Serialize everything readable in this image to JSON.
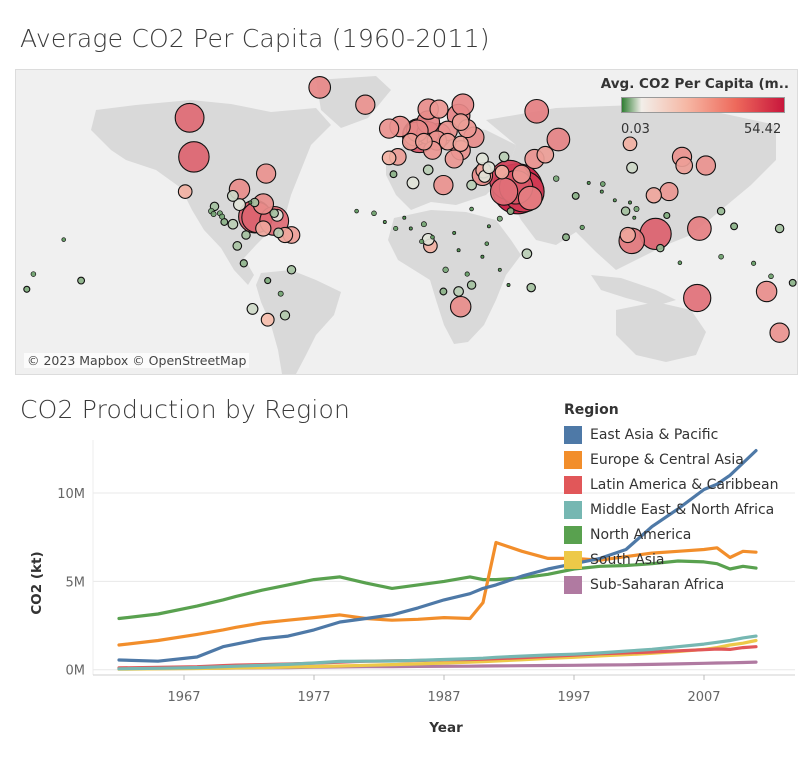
{
  "map": {
    "title": "Average CO2 Per Capita (1960-2011)",
    "attribution": "© 2023 Mapbox © OpenStreetMap",
    "legend": {
      "title": "Avg. CO2 Per Capita (m..",
      "min_label": "0.03",
      "max_label": "54.42",
      "color_low": "#2f7d32",
      "color_mid": "#f2eee9",
      "color_high": "#c8163c"
    }
  },
  "chart_data": {
    "type": "line",
    "title": "CO2 Production by Region",
    "xlabel": "Year",
    "ylabel": "CO2 (kt)",
    "xlim": [
      1960,
      2014
    ],
    "ylim": [
      -300000,
      13000000
    ],
    "x_ticks": [
      1967,
      1977,
      1987,
      1997,
      2007
    ],
    "y_ticks": [
      {
        "value": 0,
        "label": "0M"
      },
      {
        "value": 5000000,
        "label": "5M"
      },
      {
        "value": 10000000,
        "label": "10M"
      }
    ],
    "legend_title": "Region",
    "legend_position": "top-right",
    "x": [
      1962,
      1965,
      1968,
      1970,
      1971,
      1973,
      1975,
      1977,
      1979,
      1981,
      1983,
      1985,
      1987,
      1989,
      1990,
      1991,
      1993,
      1995,
      1997,
      1999,
      2001,
      2003,
      2005,
      2007,
      2008,
      2009,
      2010,
      2011
    ],
    "series": [
      {
        "name": "East Asia & Pacific",
        "color": "#4e79a7",
        "values": [
          550000,
          480000,
          720000,
          1300000,
          1450000,
          1750000,
          1900000,
          2250000,
          2700000,
          2900000,
          3100000,
          3500000,
          3950000,
          4300000,
          4600000,
          4800000,
          5300000,
          5700000,
          6000000,
          6300000,
          6800000,
          8100000,
          9100000,
          10200000,
          10500000,
          11000000,
          11700000,
          12400000
        ]
      },
      {
        "name": "Europe & Central Asia",
        "color": "#f28e2b",
        "values": [
          1400000,
          1650000,
          2000000,
          2250000,
          2400000,
          2650000,
          2800000,
          2950000,
          3100000,
          2900000,
          2800000,
          2850000,
          2950000,
          2900000,
          3800000,
          7200000,
          6700000,
          6300000,
          6300000,
          6200000,
          6400000,
          6600000,
          6700000,
          6800000,
          6900000,
          6350000,
          6700000,
          6650000
        ]
      },
      {
        "name": "Latin America & Caribbean",
        "color": "#e15759",
        "values": [
          100000,
          130000,
          170000,
          230000,
          260000,
          290000,
          320000,
          370000,
          430000,
          480000,
          500000,
          520000,
          560000,
          580000,
          600000,
          620000,
          680000,
          750000,
          820000,
          900000,
          950000,
          1000000,
          1070000,
          1130000,
          1170000,
          1150000,
          1250000,
          1300000
        ]
      },
      {
        "name": "Middle East & North Africa",
        "color": "#76b7b2",
        "values": [
          50000,
          80000,
          120000,
          170000,
          200000,
          250000,
          300000,
          380000,
          470000,
          480000,
          490000,
          530000,
          580000,
          620000,
          650000,
          700000,
          770000,
          830000,
          880000,
          950000,
          1050000,
          1150000,
          1300000,
          1450000,
          1550000,
          1650000,
          1800000,
          1900000
        ]
      },
      {
        "name": "North America",
        "color": "#59a14f",
        "values": [
          2900000,
          3150000,
          3600000,
          3950000,
          4150000,
          4500000,
          4800000,
          5100000,
          5250000,
          4900000,
          4600000,
          4800000,
          5000000,
          5250000,
          5100000,
          5100000,
          5200000,
          5400000,
          5700000,
          5850000,
          5900000,
          6000000,
          6150000,
          6100000,
          6000000,
          5700000,
          5850000,
          5750000
        ]
      },
      {
        "name": "South Asia",
        "color": "#edc948",
        "values": [
          30000,
          50000,
          70000,
          90000,
          100000,
          120000,
          150000,
          180000,
          210000,
          250000,
          290000,
          330000,
          380000,
          430000,
          460000,
          490000,
          560000,
          640000,
          700000,
          780000,
          850000,
          930000,
          1030000,
          1150000,
          1250000,
          1400000,
          1500000,
          1650000
        ]
      },
      {
        "name": "Sub-Saharan Africa",
        "color": "#b07aa1",
        "values": [
          50000,
          60000,
          75000,
          90000,
          95000,
          110000,
          120000,
          140000,
          160000,
          170000,
          175000,
          185000,
          195000,
          200000,
          210000,
          215000,
          225000,
          240000,
          250000,
          265000,
          280000,
          300000,
          330000,
          360000,
          380000,
          390000,
          410000,
          430000
        ]
      }
    ]
  },
  "map_points": [
    {
      "lon": -100,
      "lat": 58,
      "v": 18
    },
    {
      "lon": -98,
      "lat": 40,
      "v": 20
    },
    {
      "lon": -102,
      "lat": 24,
      "v": 4
    },
    {
      "lon": -40,
      "lat": 72,
      "v": 10
    },
    {
      "lon": -19,
      "lat": 64,
      "v": 8
    },
    {
      "lon": -3,
      "lat": 54,
      "v": 9
    },
    {
      "lon": -8,
      "lat": 53,
      "v": 8
    },
    {
      "lon": 2,
      "lat": 47,
      "v": 6
    },
    {
      "lon": 10,
      "lat": 51,
      "v": 11
    },
    {
      "lon": 5,
      "lat": 52,
      "v": 10
    },
    {
      "lon": 4,
      "lat": 50.5,
      "v": 12
    },
    {
      "lon": 6,
      "lat": 49.8,
      "v": 25
    },
    {
      "lon": 15,
      "lat": 62,
      "v": 7
    },
    {
      "lon": 10,
      "lat": 62,
      "v": 9
    },
    {
      "lon": 26,
      "lat": 64,
      "v": 10
    },
    {
      "lon": 10,
      "lat": 56,
      "v": 11
    },
    {
      "lon": 19,
      "lat": 52,
      "v": 8
    },
    {
      "lon": 15,
      "lat": 50,
      "v": 12
    },
    {
      "lon": 14,
      "lat": 47.5,
      "v": 8
    },
    {
      "lon": 12,
      "lat": 43,
      "v": 7
    },
    {
      "lon": -4,
      "lat": 40,
      "v": 6
    },
    {
      "lon": -8,
      "lat": 39.5,
      "v": 4
    },
    {
      "lon": 22,
      "lat": 39,
      "v": 7
    },
    {
      "lon": 25,
      "lat": 43,
      "v": 8
    },
    {
      "lon": 25,
      "lat": 46,
      "v": 5
    },
    {
      "lon": 19,
      "lat": 47,
      "v": 6
    },
    {
      "lon": 8,
      "lat": 47,
      "v": 6
    },
    {
      "lon": 31,
      "lat": 49,
      "v": 9
    },
    {
      "lon": 28,
      "lat": 53,
      "v": 7
    },
    {
      "lon": 25,
      "lat": 56,
      "v": 6
    },
    {
      "lon": 24,
      "lat": 59,
      "v": 11
    },
    {
      "lon": 60,
      "lat": 61,
      "v": 12
    },
    {
      "lon": 70,
      "lat": 48,
      "v": 11
    },
    {
      "lon": 59,
      "lat": 39,
      "v": 8
    },
    {
      "lon": 64,
      "lat": 41,
      "v": 6
    },
    {
      "lon": 35,
      "lat": 39,
      "v": 3
    },
    {
      "lon": 45,
      "lat": 40,
      "v": 2
    },
    {
      "lon": 44,
      "lat": 33,
      "v": 4
    },
    {
      "lon": 53,
      "lat": 32,
      "v": 7
    },
    {
      "lon": 45,
      "lat": 24,
      "v": 16
    },
    {
      "lon": 51.2,
      "lat": 25.3,
      "v": 54
    },
    {
      "lon": 47.5,
      "lat": 29.3,
      "v": 34
    },
    {
      "lon": 54,
      "lat": 24,
      "v": 36
    },
    {
      "lon": 50.5,
      "lat": 26,
      "v": 24
    },
    {
      "lon": 57,
      "lat": 21,
      "v": 12
    },
    {
      "lon": 48,
      "lat": 15,
      "v": 1
    },
    {
      "lon": 36,
      "lat": 31,
      "v": 3
    },
    {
      "lon": 35.5,
      "lat": 33.8,
      "v": 5
    },
    {
      "lon": 38,
      "lat": 35,
      "v": 3
    },
    {
      "lon": 35,
      "lat": 31.5,
      "v": 9
    },
    {
      "lon": 3,
      "lat": 28,
      "v": 3
    },
    {
      "lon": 17,
      "lat": 27,
      "v": 8
    },
    {
      "lon": -6,
      "lat": 32,
      "v": 1
    },
    {
      "lon": 10,
      "lat": 34,
      "v": 2
    },
    {
      "lon": 30,
      "lat": 27,
      "v": 2
    },
    {
      "lon": 30,
      "lat": 16,
      "v": 0.3
    },
    {
      "lon": -15,
      "lat": 14,
      "v": 0.5
    },
    {
      "lon": -10,
      "lat": 10,
      "v": 0.2
    },
    {
      "lon": -1,
      "lat": 12,
      "v": 0.1
    },
    {
      "lon": 8,
      "lat": 9,
      "v": 0.6
    },
    {
      "lon": 12,
      "lat": 3,
      "v": 0.3
    },
    {
      "lon": 22,
      "lat": 5,
      "v": 0.1
    },
    {
      "lon": 24,
      "lat": -3,
      "v": 0.1
    },
    {
      "lon": 38,
      "lat": 8,
      "v": 0.1
    },
    {
      "lon": 37,
      "lat": 0,
      "v": 0.3
    },
    {
      "lon": 35,
      "lat": -6,
      "v": 0.1
    },
    {
      "lon": 28,
      "lat": -14,
      "v": 0.4
    },
    {
      "lon": 18,
      "lat": -12,
      "v": 0.7
    },
    {
      "lon": 17,
      "lat": -22,
      "v": 1
    },
    {
      "lon": 24,
      "lat": -22,
      "v": 2
    },
    {
      "lon": 30,
      "lat": -19,
      "v": 1.5
    },
    {
      "lon": 25,
      "lat": -29,
      "v": 9
    },
    {
      "lon": 47,
      "lat": -19,
      "v": 0.1
    },
    {
      "lon": 55.5,
      "lat": -4.6,
      "v": 2
    },
    {
      "lon": 57.5,
      "lat": -20.2,
      "v": 1.5
    },
    {
      "lon": 11,
      "lat": -1,
      "v": 4
    },
    {
      "lon": 10,
      "lat": 2,
      "v": 3
    },
    {
      "lon": -23,
      "lat": 15,
      "v": 0.3
    },
    {
      "lon": 7,
      "lat": 1,
      "v": 0.4
    },
    {
      "lon": 2,
      "lat": 7,
      "v": 0.2
    },
    {
      "lon": -5,
      "lat": 7,
      "v": 0.4
    },
    {
      "lon": 43,
      "lat": -12,
      "v": 0.2
    },
    {
      "lon": 43,
      "lat": 11.5,
      "v": 0.6
    },
    {
      "lon": 69,
      "lat": 30,
      "v": 0.7
    },
    {
      "lon": 78,
      "lat": 22,
      "v": 1
    },
    {
      "lon": 84,
      "lat": 28,
      "v": 0.1
    },
    {
      "lon": 90,
      "lat": 24,
      "v": 0.2
    },
    {
      "lon": 90.5,
      "lat": 27.5,
      "v": 0.5
    },
    {
      "lon": 81,
      "lat": 7.5,
      "v": 0.4
    },
    {
      "lon": 73.5,
      "lat": 3,
      "v": 1
    },
    {
      "lon": 96,
      "lat": 20,
      "v": 0.2
    },
    {
      "lon": 101,
      "lat": 15,
      "v": 1.5
    },
    {
      "lon": 105,
      "lat": 12,
      "v": 0.2
    },
    {
      "lon": 103,
      "lat": 19,
      "v": 0.1
    },
    {
      "lon": 106,
      "lat": 16,
      "v": 0.6
    },
    {
      "lon": 102,
      "lat": 4,
      "v": 5
    },
    {
      "lon": 103.8,
      "lat": 1.3,
      "v": 14
    },
    {
      "lon": 114.8,
      "lat": 4.5,
      "v": 21
    },
    {
      "lon": 120,
      "lat": 13,
      "v": 0.8
    },
    {
      "lon": 117,
      "lat": -2,
      "v": 1.2
    },
    {
      "lon": 126,
      "lat": -8.8,
      "v": 0.3
    },
    {
      "lon": 104,
      "lat": 35,
      "v": 2.5
    },
    {
      "lon": 103,
      "lat": 46,
      "v": 4
    },
    {
      "lon": 128,
      "lat": 36,
      "v": 6
    },
    {
      "lon": 127,
      "lat": 40,
      "v": 8
    },
    {
      "lon": 138,
      "lat": 36,
      "v": 8
    },
    {
      "lon": 114,
      "lat": 22.3,
      "v": 5
    },
    {
      "lon": 121,
      "lat": 24,
      "v": 7
    },
    {
      "lon": 134,
      "lat": -25,
      "v": 16
    },
    {
      "lon": 172,
      "lat": -41,
      "v": 8
    },
    {
      "lon": 145,
      "lat": -6,
      "v": 0.5
    },
    {
      "lon": 160,
      "lat": -9,
      "v": 0.4
    },
    {
      "lon": 166,
      "lat": -22,
      "v": 9
    },
    {
      "lon": 178,
      "lat": -18,
      "v": 1
    },
    {
      "lon": 172,
      "lat": 7,
      "v": 1.5
    },
    {
      "lon": 168,
      "lat": -15,
      "v": 0.5
    },
    {
      "lon": 151,
      "lat": 8,
      "v": 1
    },
    {
      "lon": 145,
      "lat": 15,
      "v": 1.2
    },
    {
      "lon": 135,
      "lat": 7,
      "v": 12
    },
    {
      "lon": -150,
      "lat": -17,
      "v": 1
    },
    {
      "lon": -172,
      "lat": -14,
      "v": 0.5
    },
    {
      "lon": -175,
      "lat": -21,
      "v": 0.8
    },
    {
      "lon": -158,
      "lat": 1.9,
      "v": 0.3
    },
    {
      "lon": -80,
      "lat": 22,
      "v": 2.5
    },
    {
      "lon": -72,
      "lat": 19,
      "v": 0.2
    },
    {
      "lon": -70,
      "lat": 19,
      "v": 1.5
    },
    {
      "lon": -77,
      "lat": 18,
      "v": 3
    },
    {
      "lon": -66,
      "lat": 18.3,
      "v": 9
    },
    {
      "lon": -61,
      "lat": 10.5,
      "v": 18
    },
    {
      "lon": -64.7,
      "lat": 32.3,
      "v": 8
    },
    {
      "lon": -77,
      "lat": 25,
      "v": 9
    },
    {
      "lon": -69.9,
      "lat": 12.5,
      "v": 23
    },
    {
      "lon": -68.9,
      "lat": 12.1,
      "v": 20
    },
    {
      "lon": -90,
      "lat": 15,
      "v": 0.7
    },
    {
      "lon": -86,
      "lat": 14,
      "v": 0.6
    },
    {
      "lon": -85,
      "lat": 12.5,
      "v": 0.6
    },
    {
      "lon": -84,
      "lat": 10,
      "v": 1
    },
    {
      "lon": -80,
      "lat": 9,
      "v": 2
    },
    {
      "lon": -88.9,
      "lat": 13.7,
      "v": 0.6
    },
    {
      "lon": -88.5,
      "lat": 17.2,
      "v": 1.5
    },
    {
      "lon": -66,
      "lat": 7,
      "v": 5
    },
    {
      "lon": -74,
      "lat": 4,
      "v": 1.5
    },
    {
      "lon": -78,
      "lat": -1,
      "v": 1.6
    },
    {
      "lon": -75,
      "lat": -9,
      "v": 1.1
    },
    {
      "lon": -53,
      "lat": -12,
      "v": 1.5
    },
    {
      "lon": -64,
      "lat": -17,
      "v": 0.8
    },
    {
      "lon": -71,
      "lat": -30,
      "v": 2.5
    },
    {
      "lon": -64,
      "lat": -35,
      "v": 3.5
    },
    {
      "lon": -56,
      "lat": -33,
      "v": 1.8
    },
    {
      "lon": -58,
      "lat": -23,
      "v": 0.6
    },
    {
      "lon": -59,
      "lat": 5,
      "v": 2
    },
    {
      "lon": -56,
      "lat": 4,
      "v": 5
    },
    {
      "lon": -53,
      "lat": 4,
      "v": 6
    },
    {
      "lon": -59.6,
      "lat": 13.1,
      "v": 3
    },
    {
      "lon": -61,
      "lat": 14,
      "v": 1.5
    }
  ]
}
